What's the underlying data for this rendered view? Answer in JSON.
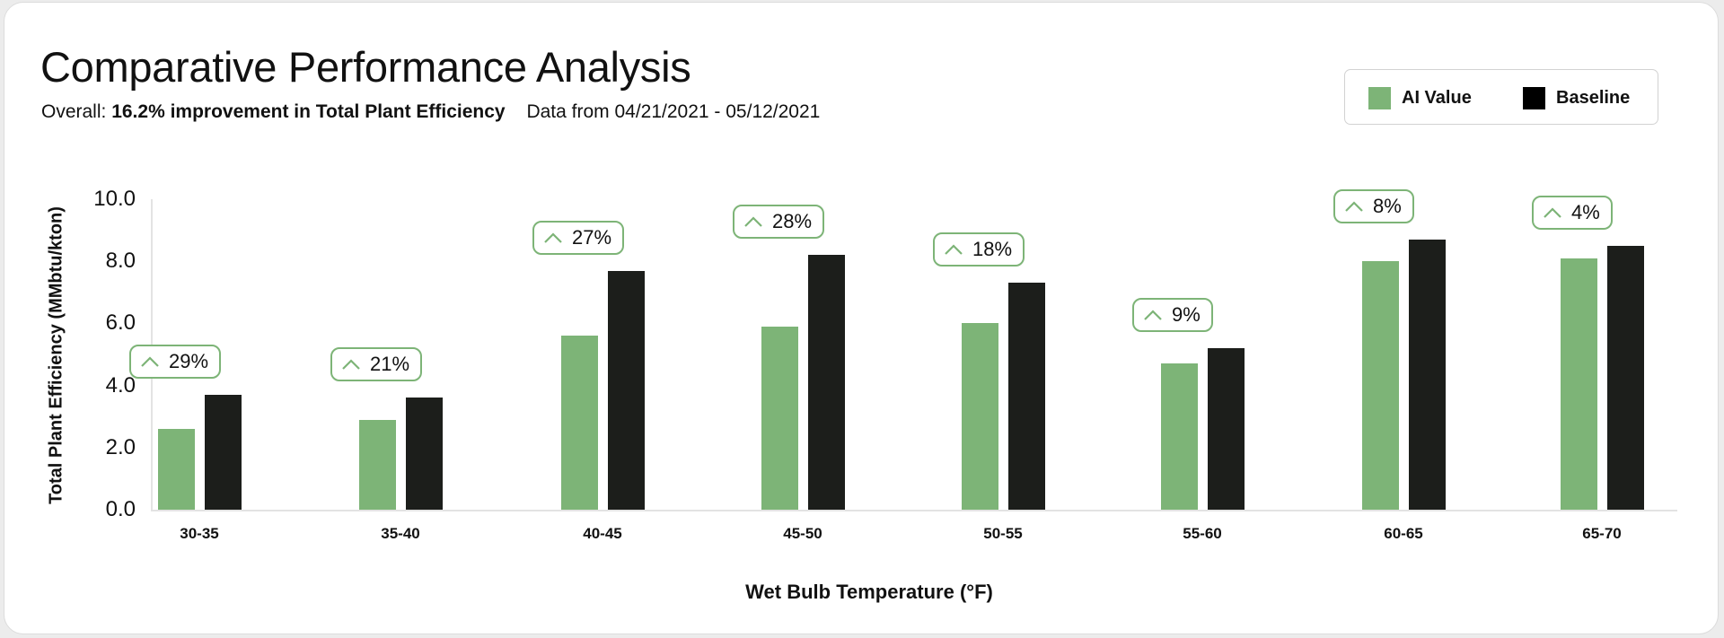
{
  "header": {
    "title": "Comparative Performance Analysis",
    "overall_label": "Overall:",
    "overall_value": "16.2% improvement in Total Plant Efficiency",
    "date_range": "Data from 04/21/2021 - 05/12/2021"
  },
  "legend": {
    "items": [
      {
        "label": "AI Value",
        "color": "#7db477"
      },
      {
        "label": "Baseline",
        "color": "#1c1e1b"
      }
    ]
  },
  "colors": {
    "ai": "#7db477",
    "baseline": "#1c1e1b",
    "badge_border": "#7db477",
    "axis": "#e3e3e3"
  },
  "chart_data": {
    "type": "bar",
    "title": "Comparative Performance Analysis",
    "xlabel": "Wet Bulb Temperature (°F)",
    "ylabel": "Total Plant Efficiency (MMbtu/kton)",
    "ylim": [
      0,
      10
    ],
    "yticks": [
      "0.0",
      "2.0",
      "4.0",
      "6.0",
      "8.0",
      "10.0"
    ],
    "grid": false,
    "legend_position": "top-right",
    "categories": [
      "30-35",
      "35-40",
      "40-45",
      "45-50",
      "50-55",
      "55-60",
      "60-65",
      "65-70"
    ],
    "series": [
      {
        "name": "AI Value",
        "values": [
          2.6,
          2.9,
          5.6,
          5.9,
          6.0,
          4.7,
          8.0,
          8.1
        ]
      },
      {
        "name": "Baseline",
        "values": [
          3.7,
          3.6,
          7.7,
          8.2,
          7.3,
          5.2,
          8.7,
          8.5
        ]
      }
    ],
    "annotations": [
      "29%",
      "21%",
      "27%",
      "28%",
      "18%",
      "9%",
      "8%",
      "4%"
    ],
    "annotation_icon": "chevron-up-icon"
  }
}
